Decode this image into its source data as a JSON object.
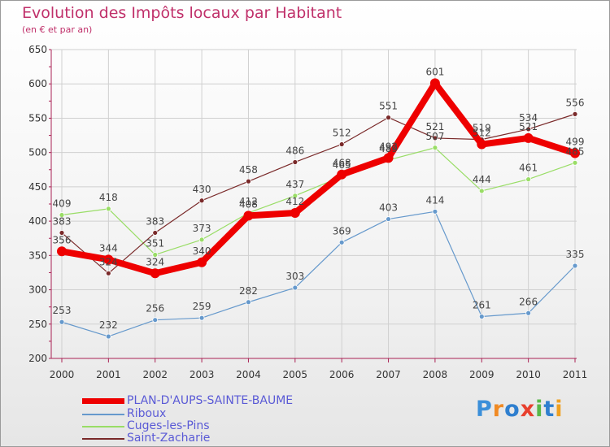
{
  "header": {
    "title": "Evolution des Impôts locaux par Habitant",
    "subtitle": "(en € et par an)"
  },
  "logo": {
    "letters": [
      "P",
      "r",
      "o",
      "x",
      "i",
      "t",
      "i"
    ]
  },
  "colors": {
    "main": "#ee0000",
    "riboux": "#6699cc",
    "cuges": "#99dd66",
    "zacharie": "#7a2a2a",
    "grid": "#d0d0d0",
    "axis": "#aa2255",
    "legend_text": "#5a5ad6",
    "logo": [
      "#3b8fd9",
      "#f08a24",
      "#2f7fcf",
      "#e8402e",
      "#58b848",
      "#2f7fcf",
      "#f0a020"
    ]
  },
  "chart_data": {
    "type": "line",
    "title": "Evolution des Impôts locaux par Habitant",
    "subtitle": "(en € et par an)",
    "xlabel": "",
    "ylabel": "",
    "x": [
      "2000",
      "2001",
      "2002",
      "2003",
      "2004",
      "2005",
      "2006",
      "2007",
      "2008",
      "2009",
      "2010",
      "2011"
    ],
    "ylim": [
      200,
      650
    ],
    "yticks": [
      "200",
      "250",
      "300",
      "350",
      "400",
      "450",
      "500",
      "550",
      "600",
      "650"
    ],
    "grid": true,
    "legend_position": "bottom-left",
    "series": [
      {
        "name": "PLAN-D'AUPS-SAINTE-BAUME",
        "key": "main",
        "values": [
          356,
          344,
          324,
          340,
          408,
          412,
          468,
          492,
          601,
          512,
          521,
          499
        ],
        "labels": [
          "356",
          "344",
          "324",
          "340",
          "408",
          "412",
          "468",
          "492",
          "601",
          "512",
          "521",
          "499"
        ]
      },
      {
        "name": "Riboux",
        "key": "riboux",
        "values": [
          253,
          232,
          256,
          259,
          282,
          303,
          369,
          403,
          414,
          261,
          266,
          335
        ],
        "labels": [
          "253",
          "232",
          "256",
          "259",
          "282",
          "303",
          "369",
          "403",
          "414",
          "261",
          "266",
          "335"
        ]
      },
      {
        "name": "Cuges-les-Pins",
        "key": "cuges",
        "values": [
          409,
          418,
          351,
          373,
          412,
          437,
          465,
          489,
          507,
          444,
          461,
          485
        ],
        "labels": [
          "409",
          "418",
          "351",
          "373",
          "412",
          "437",
          "465",
          "489",
          "507",
          "444",
          "461",
          "485"
        ]
      },
      {
        "name": "Saint-Zacharie",
        "key": "zacharie",
        "values": [
          383,
          324,
          383,
          430,
          458,
          486,
          512,
          551,
          521,
          519,
          534,
          556
        ],
        "labels": [
          "383",
          "324",
          "383",
          "430",
          "458",
          "486",
          "512",
          "551",
          "521",
          "519",
          "534",
          "556"
        ]
      }
    ]
  }
}
